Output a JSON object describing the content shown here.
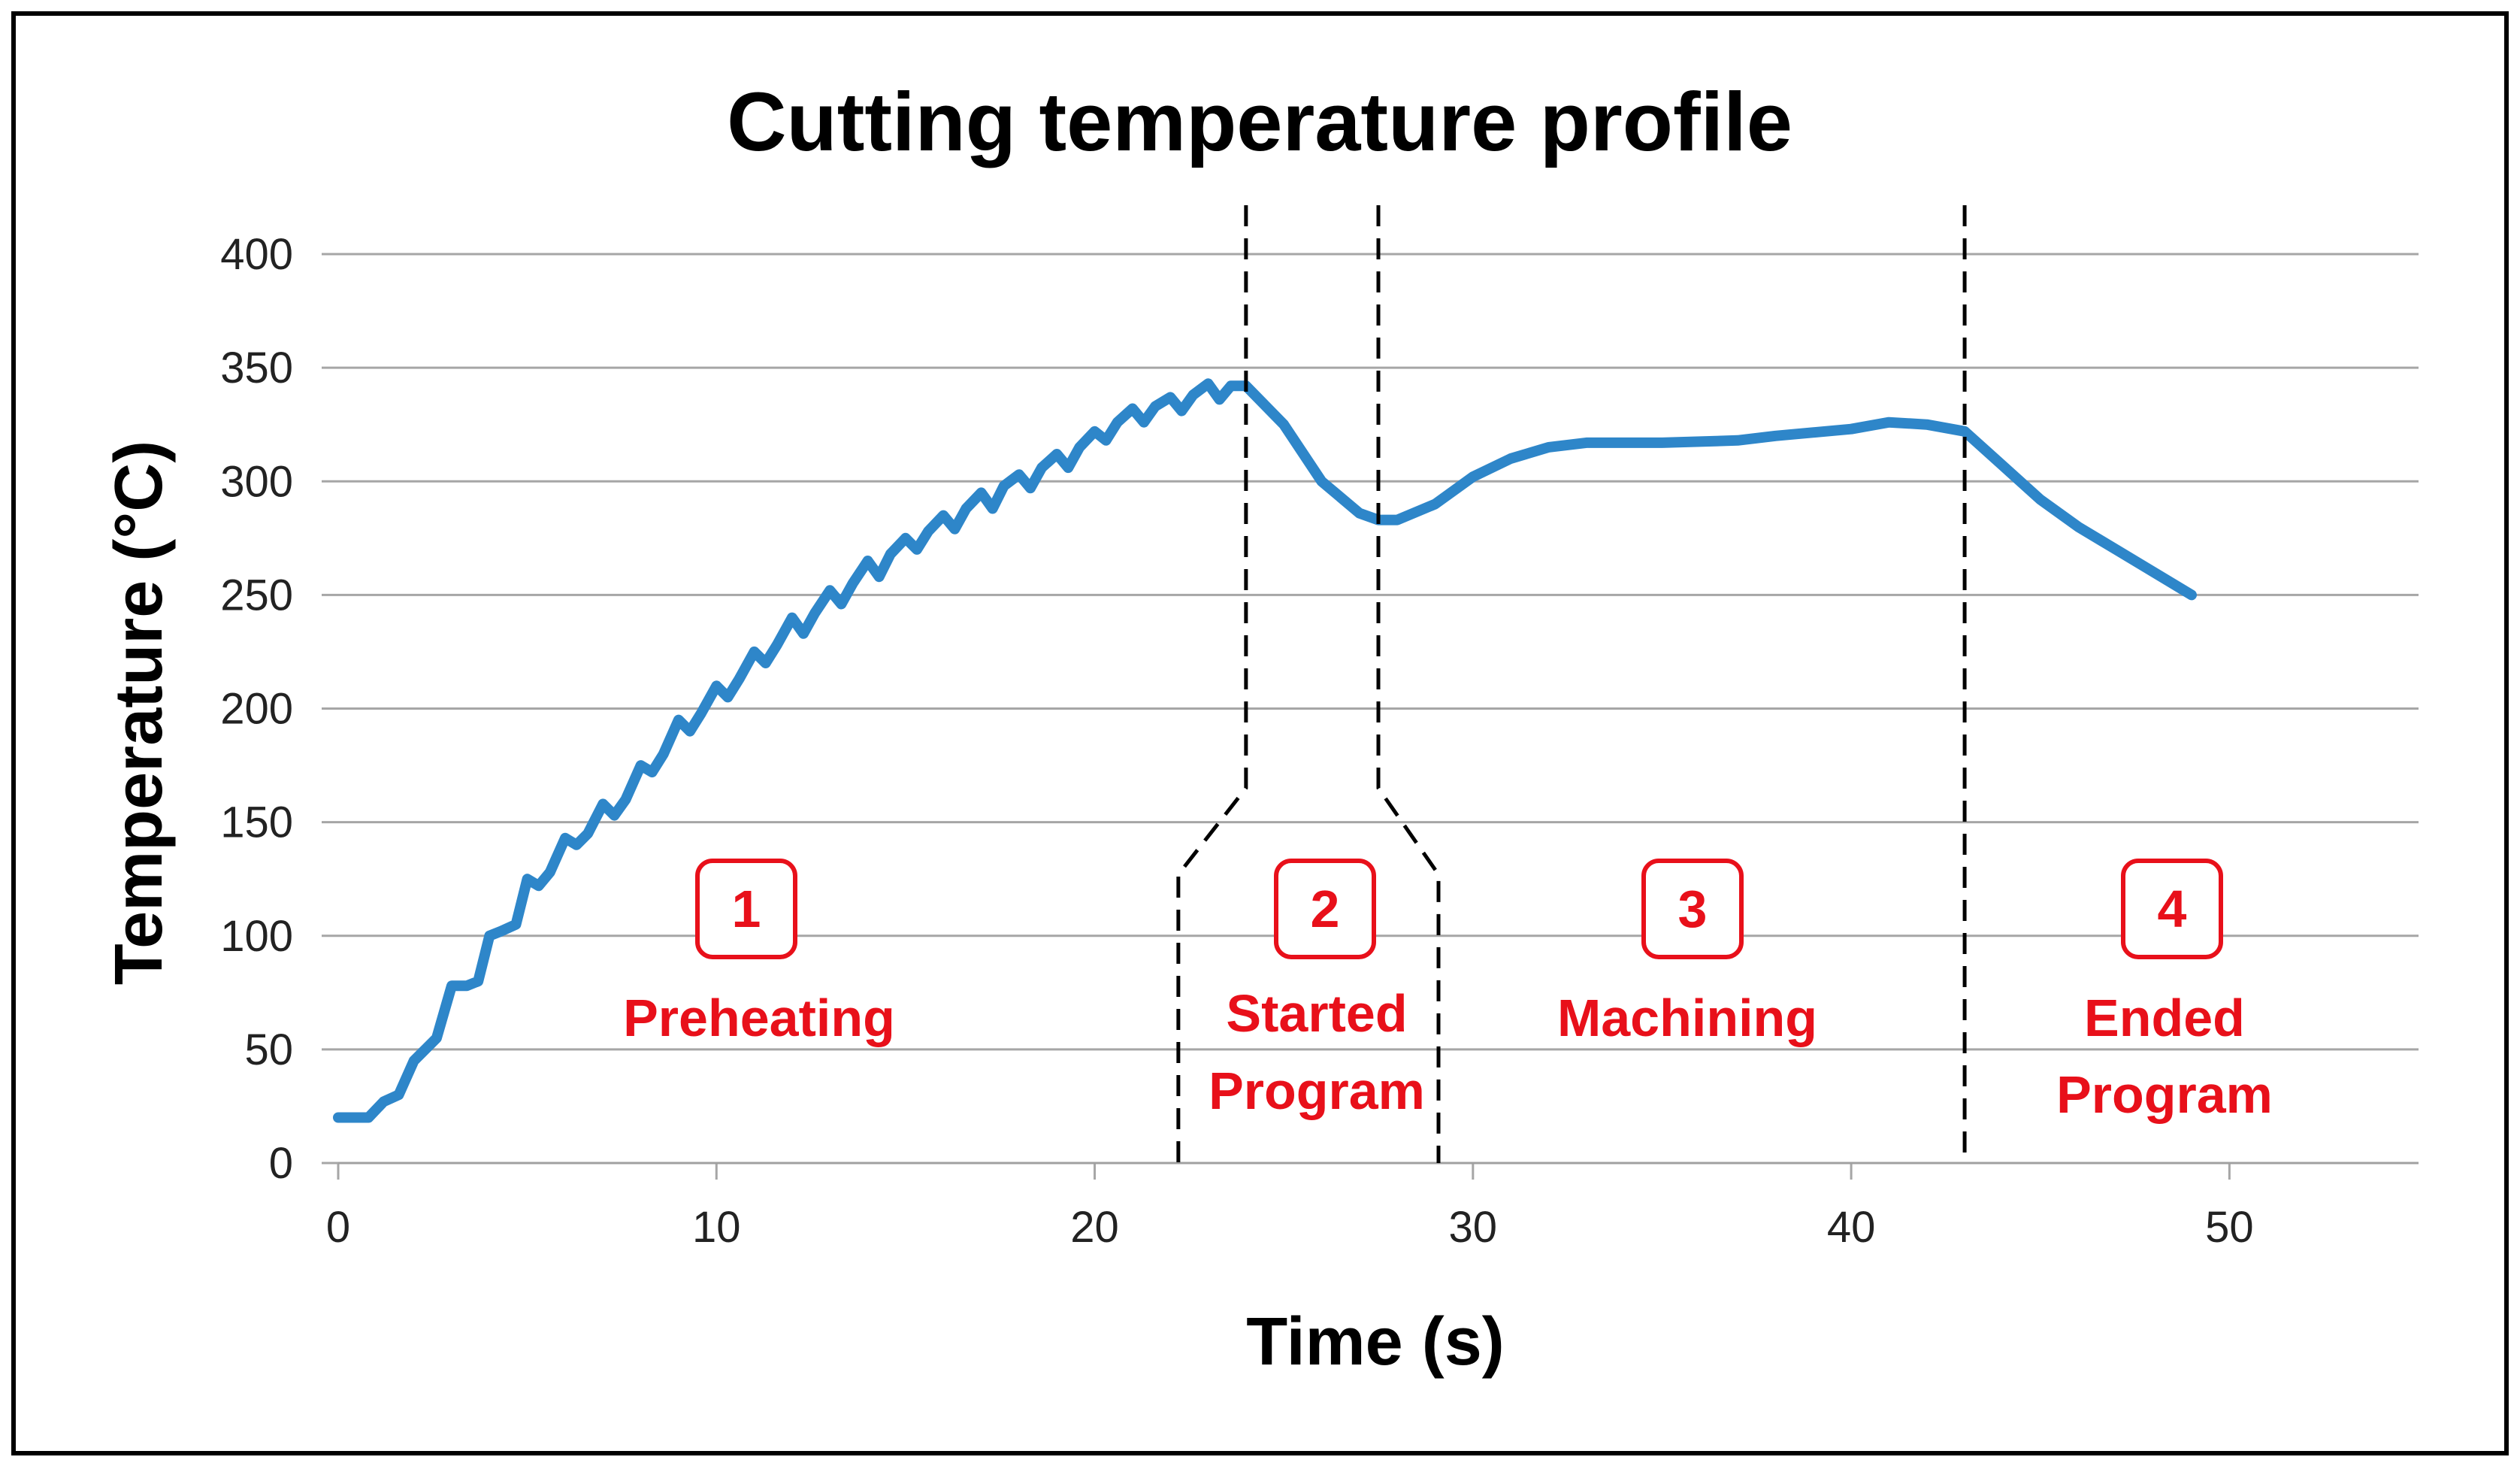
{
  "chart_data": {
    "type": "line",
    "title": "Cutting temperature profile",
    "xlabel": "Time (s)",
    "ylabel": "Temperature  (°C)",
    "xlim": [
      0,
      55
    ],
    "ylim": [
      0,
      400
    ],
    "xticks": [
      0,
      10,
      20,
      30,
      40,
      50
    ],
    "yticks": [
      0,
      50,
      100,
      150,
      200,
      250,
      300,
      350,
      400
    ],
    "grid": "horizontal",
    "series_color": "#2E86C9",
    "annotation_color": "#E8101A",
    "series": [
      {
        "name": "Cutting temperature",
        "x": [
          0,
          0.8,
          1.2,
          1.6,
          2.0,
          2.3,
          2.6,
          3.0,
          3.4,
          3.7,
          4.0,
          4.3,
          4.7,
          5.0,
          5.3,
          5.6,
          6.0,
          6.3,
          6.6,
          7.0,
          7.3,
          7.6,
          8.0,
          8.3,
          8.6,
          9.0,
          9.3,
          9.6,
          10.0,
          10.3,
          10.6,
          11.0,
          11.3,
          11.6,
          12.0,
          12.3,
          12.6,
          13.0,
          13.3,
          13.6,
          14.0,
          14.3,
          14.6,
          15.0,
          15.3,
          15.6,
          16.0,
          16.3,
          16.6,
          17.0,
          17.3,
          17.6,
          18.0,
          18.3,
          18.6,
          19.0,
          19.3,
          19.6,
          20.0,
          20.3,
          20.6,
          21.0,
          21.3,
          21.6,
          22.0,
          22.3,
          22.6,
          23.0,
          23.3,
          23.6,
          24.0,
          25.0,
          26.0,
          27.0,
          27.5,
          28.0,
          29.0,
          30.0,
          31.0,
          32.0,
          33.0,
          35.0,
          37.0,
          38.0,
          40.0,
          41.0,
          42.0,
          43.0,
          44.0,
          45.0,
          46.0,
          47.0,
          48.0,
          49.0
        ],
        "values": [
          20,
          20,
          27,
          30,
          45,
          50,
          55,
          78,
          78,
          80,
          100,
          102,
          105,
          125,
          122,
          128,
          143,
          140,
          145,
          158,
          153,
          160,
          175,
          172,
          180,
          195,
          190,
          198,
          210,
          205,
          213,
          225,
          220,
          228,
          240,
          233,
          242,
          252,
          246,
          255,
          265,
          258,
          268,
          275,
          270,
          278,
          285,
          279,
          288,
          295,
          288,
          298,
          303,
          297,
          306,
          312,
          306,
          315,
          322,
          318,
          326,
          332,
          326,
          333,
          337,
          331,
          338,
          343,
          336,
          342,
          342,
          325,
          300,
          286,
          283,
          283,
          290,
          302,
          310,
          315,
          317,
          317,
          318,
          320,
          323,
          326,
          325,
          322,
          307,
          292,
          280,
          270,
          260,
          250
        ]
      }
    ],
    "phase_markers": [
      24,
      27.5,
      43
    ],
    "phases": [
      {
        "number": "1",
        "name": "Preheating"
      },
      {
        "number": "2",
        "name_line1": "Started",
        "name_line2": "Program"
      },
      {
        "number": "3",
        "name": "Machining"
      },
      {
        "number": "4",
        "name_line1": "Ended",
        "name_line2": "Program"
      }
    ]
  }
}
